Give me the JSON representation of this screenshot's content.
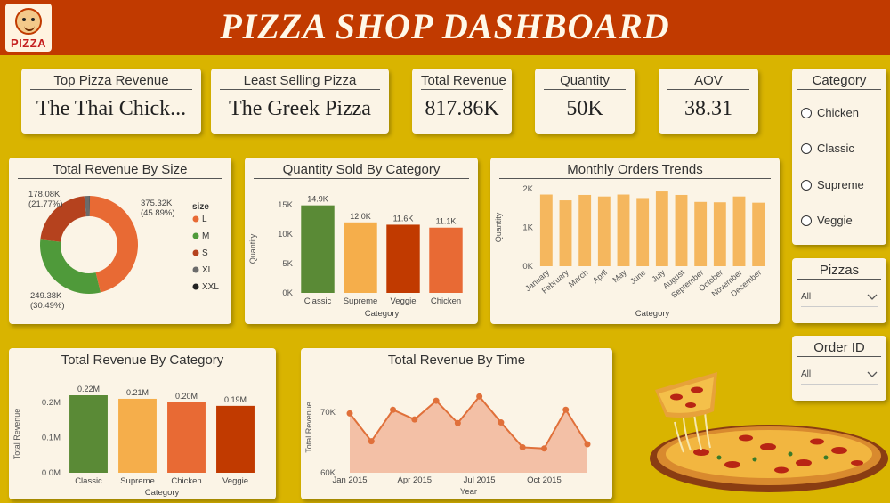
{
  "header": {
    "title": "PIZZA SHOP DASHBOARD",
    "logo_text": "PIZZA"
  },
  "kpis": [
    {
      "label": "Top Pizza Revenue",
      "value": "The Thai Chick..."
    },
    {
      "label": "Least Selling Pizza",
      "value": "The Greek Pizza"
    },
    {
      "label": "Total Revenue",
      "value": "817.86K"
    },
    {
      "label": "Quantity",
      "value": "50K"
    },
    {
      "label": "AOV",
      "value": "38.31"
    }
  ],
  "slicers": {
    "category": {
      "title": "Category",
      "options": [
        "Chicken",
        "Classic",
        "Supreme",
        "Veggie"
      ]
    },
    "pizzas": {
      "title": "Pizzas",
      "value": "All"
    },
    "order_id": {
      "title": "Order ID",
      "value": "All"
    }
  },
  "colors": {
    "header": "#c13a00",
    "background": "#d9b400",
    "card": "#fbf4e6",
    "green": "#5a8a36",
    "light_orange": "#f5ae4b",
    "dark_orange": "#c13a00",
    "orange": "#e86a34"
  },
  "chart_data": [
    {
      "id": "revenue_by_size",
      "type": "pie",
      "title": "Total Revenue By Size",
      "legend_title": "size",
      "slices": [
        {
          "name": "L",
          "value": 375.32,
          "label": "375.32K",
          "pct_label": "(45.89%)",
          "color": "#e86a34"
        },
        {
          "name": "M",
          "value": 249.38,
          "label": "249.38K",
          "pct_label": "(30.49%)",
          "color": "#4f9a3a"
        },
        {
          "name": "S",
          "value": 178.08,
          "label": "178.08K",
          "pct_label": "(21.77%)",
          "color": "#b5421e"
        },
        {
          "name": "XL",
          "value": 14.08,
          "color": "#6b6b6b"
        },
        {
          "name": "XXL",
          "value": 1.0,
          "color": "#222222"
        }
      ]
    },
    {
      "id": "qty_by_category",
      "type": "bar",
      "title": "Quantity Sold By Category",
      "xlabel": "Category",
      "ylabel": "Quantity",
      "categories": [
        "Classic",
        "Supreme",
        "Veggie",
        "Chicken"
      ],
      "values": [
        14.9,
        12.0,
        11.6,
        11.1
      ],
      "data_labels": [
        "14.9K",
        "12.0K",
        "11.6K",
        "11.1K"
      ],
      "colors": [
        "#5a8a36",
        "#f5ae4b",
        "#c13a00",
        "#e86a34"
      ],
      "ylim": [
        0,
        15
      ],
      "yticks": [
        0,
        5,
        10,
        15
      ],
      "ytick_labels": [
        "0K",
        "5K",
        "10K",
        "15K"
      ]
    },
    {
      "id": "monthly_orders",
      "type": "bar",
      "title": "Monthly Orders Trends",
      "xlabel": "Category",
      "ylabel": "Quantity",
      "categories": [
        "January",
        "February",
        "March",
        "April",
        "May",
        "June",
        "July",
        "August",
        "September",
        "October",
        "November",
        "December"
      ],
      "values": [
        1.85,
        1.7,
        1.84,
        1.8,
        1.85,
        1.76,
        1.93,
        1.84,
        1.66,
        1.65,
        1.8,
        1.64
      ],
      "color": "#f5b75e",
      "ylim": [
        0,
        2
      ],
      "yticks": [
        0,
        1,
        2
      ],
      "ytick_labels": [
        "0K",
        "1K",
        "2K"
      ]
    },
    {
      "id": "revenue_by_category",
      "type": "bar",
      "title": "Total Revenue By Category",
      "xlabel": "Category",
      "ylabel": "Total Revenue",
      "categories": [
        "Classic",
        "Supreme",
        "Chicken",
        "Veggie"
      ],
      "values": [
        0.22,
        0.21,
        0.2,
        0.19
      ],
      "data_labels": [
        "0.22M",
        "0.21M",
        "0.20M",
        "0.19M"
      ],
      "colors": [
        "#5a8a36",
        "#f5ae4b",
        "#e86a34",
        "#c13a00"
      ],
      "ylim": [
        0,
        0.22
      ],
      "yticks": [
        0,
        0.1,
        0.2
      ],
      "ytick_labels": [
        "0.0M",
        "0.1M",
        "0.2M"
      ]
    },
    {
      "id": "revenue_by_time",
      "type": "area",
      "title": "Total Revenue By Time",
      "xlabel": "Year",
      "ylabel": "Total Revenue",
      "x": [
        "Jan 2015",
        "Feb 2015",
        "Mar 2015",
        "Apr 2015",
        "May 2015",
        "Jun 2015",
        "Jul 2015",
        "Aug 2015",
        "Sep 2015",
        "Oct 2015",
        "Nov 2015",
        "Dec 2015"
      ],
      "values": [
        69.8,
        65.2,
        70.4,
        68.8,
        71.9,
        68.2,
        72.6,
        68.3,
        64.2,
        64.0,
        70.4,
        64.7
      ],
      "xtick_labels": [
        {
          "at": 0,
          "label": "Jan 2015"
        },
        {
          "at": 3,
          "label": "Apr 2015"
        },
        {
          "at": 6,
          "label": "Jul 2015"
        },
        {
          "at": 9,
          "label": "Oct 2015"
        }
      ],
      "ylim": [
        60,
        75
      ],
      "yticks": [
        60,
        70
      ],
      "ytick_labels": [
        "60K",
        "70K"
      ],
      "line_color": "#e0703a",
      "fill_color": "#f3c0a6"
    }
  ]
}
